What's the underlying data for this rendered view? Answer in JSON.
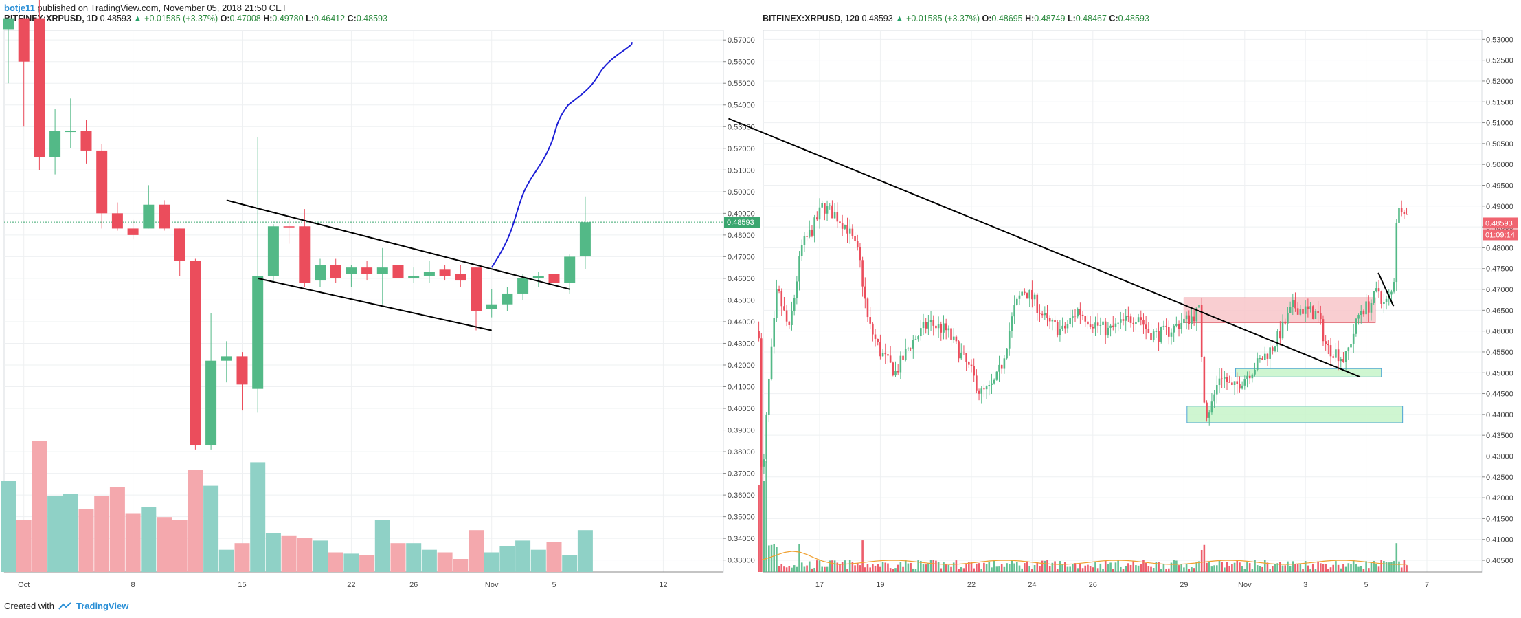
{
  "header": {
    "username": "botje11",
    "published": "published on TradingView.com, November 05, 2018 21:50 CET"
  },
  "footer": {
    "created_with": "Created with",
    "brand": "TradingView"
  },
  "colors": {
    "up": "#53b987",
    "down": "#eb4d5c",
    "vol_up": "#8fd1c6",
    "vol_down": "#f4a8ad",
    "grid": "#eef0f2",
    "axis_text": "#444444",
    "trend_line": "#000000",
    "projection": "#1c1fd6",
    "resistance_box": "#f8c6c9",
    "support_box": "#c7f5c9",
    "price_label": "#f06470",
    "last_price_line": "#3aa66f"
  },
  "chart_data": [
    {
      "type": "candlestick",
      "symbol": "BITFINEX:XRPUSD",
      "interval": "1D",
      "legend": {
        "symbol_interval": "BITFINEX:XRPUSD, 1D",
        "last": "0.48593",
        "change": "+0.01585 (+3.37%)",
        "o": "0.47008",
        "h": "0.49780",
        "l": "0.46412",
        "c": "0.48593"
      },
      "price_label": "0.48593",
      "ylim": [
        0.3245,
        0.5745
      ],
      "yticks": [
        "0.57000",
        "0.56000",
        "0.55000",
        "0.54000",
        "0.53000",
        "0.52000",
        "0.51000",
        "0.50000",
        "0.49000",
        "0.48000",
        "0.47000",
        "0.46000",
        "0.45000",
        "0.44000",
        "0.43000",
        "0.42000",
        "0.41000",
        "0.40000",
        "0.39000",
        "0.38000",
        "0.37000",
        "0.36000",
        "0.35000",
        "0.34000",
        "0.33000"
      ],
      "xticks": [
        {
          "i": 1,
          "label": "Oct"
        },
        {
          "i": 8,
          "label": "8"
        },
        {
          "i": 15,
          "label": "15"
        },
        {
          "i": 22,
          "label": "22"
        },
        {
          "i": 26,
          "label": "26"
        },
        {
          "i": 31,
          "label": "Nov"
        },
        {
          "i": 35,
          "label": "5"
        },
        {
          "i": 42,
          "label": "12"
        }
      ],
      "candles": [
        {
          "i": 0,
          "o": 0.575,
          "h": 0.58,
          "l": 0.55,
          "c": 0.58,
          "v": 0.7
        },
        {
          "i": 1,
          "o": 0.58,
          "h": 0.58,
          "l": 0.53,
          "c": 0.56,
          "v": 0.4
        },
        {
          "i": 2,
          "o": 0.58,
          "h": 0.59,
          "l": 0.51,
          "c": 0.516,
          "v": 1.0
        },
        {
          "i": 3,
          "o": 0.516,
          "h": 0.538,
          "l": 0.508,
          "c": 0.528,
          "v": 0.58
        },
        {
          "i": 4,
          "o": 0.528,
          "h": 0.543,
          "l": 0.52,
          "c": 0.528,
          "v": 0.6
        },
        {
          "i": 5,
          "o": 0.528,
          "h": 0.533,
          "l": 0.513,
          "c": 0.519,
          "v": 0.48
        },
        {
          "i": 6,
          "o": 0.519,
          "h": 0.522,
          "l": 0.483,
          "c": 0.49,
          "v": 0.58
        },
        {
          "i": 7,
          "o": 0.49,
          "h": 0.495,
          "l": 0.482,
          "c": 0.483,
          "v": 0.65
        },
        {
          "i": 8,
          "o": 0.483,
          "h": 0.487,
          "l": 0.478,
          "c": 0.48,
          "v": 0.45
        },
        {
          "i": 9,
          "o": 0.483,
          "h": 0.503,
          "l": 0.483,
          "c": 0.494,
          "v": 0.5
        },
        {
          "i": 10,
          "o": 0.494,
          "h": 0.496,
          "l": 0.482,
          "c": 0.483,
          "v": 0.42
        },
        {
          "i": 11,
          "o": 0.483,
          "h": 0.483,
          "l": 0.461,
          "c": 0.468,
          "v": 0.4
        },
        {
          "i": 12,
          "o": 0.468,
          "h": 0.469,
          "l": 0.381,
          "c": 0.383,
          "v": 0.78
        },
        {
          "i": 13,
          "o": 0.383,
          "h": 0.444,
          "l": 0.381,
          "c": 0.422,
          "v": 0.66
        },
        {
          "i": 14,
          "o": 0.422,
          "h": 0.431,
          "l": 0.412,
          "c": 0.424,
          "v": 0.17
        },
        {
          "i": 15,
          "o": 0.424,
          "h": 0.426,
          "l": 0.399,
          "c": 0.411,
          "v": 0.22
        },
        {
          "i": 16,
          "o": 0.409,
          "h": 0.525,
          "l": 0.398,
          "c": 0.461,
          "v": 0.84
        },
        {
          "i": 17,
          "o": 0.461,
          "h": 0.485,
          "l": 0.458,
          "c": 0.484,
          "v": 0.3
        },
        {
          "i": 18,
          "o": 0.484,
          "h": 0.488,
          "l": 0.476,
          "c": 0.4838,
          "v": 0.28
        },
        {
          "i": 19,
          "o": 0.484,
          "h": 0.492,
          "l": 0.456,
          "c": 0.458,
          "v": 0.26
        },
        {
          "i": 20,
          "o": 0.459,
          "h": 0.469,
          "l": 0.456,
          "c": 0.466,
          "v": 0.24
        },
        {
          "i": 21,
          "o": 0.466,
          "h": 0.469,
          "l": 0.458,
          "c": 0.46,
          "v": 0.15
        },
        {
          "i": 22,
          "o": 0.462,
          "h": 0.466,
          "l": 0.456,
          "c": 0.465,
          "v": 0.14
        },
        {
          "i": 23,
          "o": 0.465,
          "h": 0.468,
          "l": 0.459,
          "c": 0.462,
          "v": 0.13
        },
        {
          "i": 24,
          "o": 0.462,
          "h": 0.474,
          "l": 0.448,
          "c": 0.465,
          "v": 0.4
        },
        {
          "i": 25,
          "o": 0.466,
          "h": 0.47,
          "l": 0.459,
          "c": 0.46,
          "v": 0.22
        },
        {
          "i": 26,
          "o": 0.46,
          "h": 0.465,
          "l": 0.458,
          "c": 0.461,
          "v": 0.22
        },
        {
          "i": 27,
          "o": 0.461,
          "h": 0.468,
          "l": 0.458,
          "c": 0.463,
          "v": 0.17
        },
        {
          "i": 28,
          "o": 0.464,
          "h": 0.466,
          "l": 0.459,
          "c": 0.461,
          "v": 0.15
        },
        {
          "i": 29,
          "o": 0.462,
          "h": 0.466,
          "l": 0.456,
          "c": 0.459,
          "v": 0.1
        },
        {
          "i": 30,
          "o": 0.465,
          "h": 0.465,
          "l": 0.436,
          "c": 0.445,
          "v": 0.32
        },
        {
          "i": 31,
          "o": 0.446,
          "h": 0.455,
          "l": 0.442,
          "c": 0.448,
          "v": 0.15
        },
        {
          "i": 32,
          "o": 0.448,
          "h": 0.456,
          "l": 0.445,
          "c": 0.453,
          "v": 0.2
        },
        {
          "i": 33,
          "o": 0.453,
          "h": 0.462,
          "l": 0.45,
          "c": 0.46,
          "v": 0.24
        },
        {
          "i": 34,
          "o": 0.46,
          "h": 0.463,
          "l": 0.456,
          "c": 0.461,
          "v": 0.17
        },
        {
          "i": 35,
          "o": 0.462,
          "h": 0.464,
          "l": 0.457,
          "c": 0.458,
          "v": 0.23
        },
        {
          "i": 36,
          "o": 0.458,
          "h": 0.471,
          "l": 0.453,
          "c": 0.47,
          "v": 0.13
        },
        {
          "i": 37,
          "o": 0.4701,
          "h": 0.4978,
          "l": 0.4641,
          "c": 0.4859,
          "v": 0.32
        }
      ],
      "drawings": {
        "upper_trend": [
          [
            14,
            0.496
          ],
          [
            36,
            0.455
          ]
        ],
        "lower_trend": [
          [
            16,
            0.46
          ],
          [
            31,
            0.436
          ]
        ],
        "projection": [
          [
            31,
            0.465
          ],
          [
            33,
            0.496
          ],
          [
            34.5,
            0.52
          ],
          [
            36,
            0.54
          ],
          [
            38,
            0.555
          ],
          [
            40,
            0.569
          ]
        ]
      }
    },
    {
      "type": "candlestick",
      "symbol": "BITFINEX:XRPUSD",
      "interval": "120",
      "legend": {
        "symbol_interval": "BITFINEX:XRPUSD, 120",
        "last": "0.48593",
        "change": "+0.01585 (+3.37%)",
        "o": "0.48695",
        "h": "0.48749",
        "l": "0.48467",
        "c": "0.48593"
      },
      "price_label": "0.48593",
      "countdown_label": "01:09:14",
      "ylim": [
        0.4022,
        0.5322
      ],
      "yticks": [
        "0.53000",
        "0.52500",
        "0.52000",
        "0.51500",
        "0.51000",
        "0.50500",
        "0.50000",
        "0.49500",
        "0.49000",
        "0.48500",
        "0.48000",
        "0.47500",
        "0.47000",
        "0.46500",
        "0.46000",
        "0.45500",
        "0.45000",
        "0.44500",
        "0.44000",
        "0.43500",
        "0.43000",
        "0.42500",
        "0.42000",
        "0.41500",
        "0.41000",
        "0.40500"
      ],
      "xticks": [
        {
          "t": 17,
          "label": "17"
        },
        {
          "t": 19,
          "label": "19"
        },
        {
          "t": 22,
          "label": "22"
        },
        {
          "t": 24,
          "label": "24"
        },
        {
          "t": 26,
          "label": "26"
        },
        {
          "t": 29,
          "label": "29"
        },
        {
          "t": 31,
          "label": "Nov"
        },
        {
          "t": 33,
          "label": "3"
        },
        {
          "t": 35,
          "label": "5"
        },
        {
          "t": 37,
          "label": "7"
        }
      ],
      "path": [
        [
          15.0,
          0.46
        ],
        [
          15.1,
          0.42
        ],
        [
          15.3,
          0.445
        ],
        [
          15.6,
          0.47
        ],
        [
          16.0,
          0.46
        ],
        [
          16.4,
          0.48
        ],
        [
          16.8,
          0.485
        ],
        [
          17.1,
          0.49
        ],
        [
          17.5,
          0.488
        ],
        [
          17.9,
          0.485
        ],
        [
          18.3,
          0.478
        ],
        [
          18.6,
          0.462
        ],
        [
          19.0,
          0.455
        ],
        [
          19.5,
          0.45
        ],
        [
          20.0,
          0.457
        ],
        [
          20.6,
          0.462
        ],
        [
          21.2,
          0.46
        ],
        [
          21.6,
          0.455
        ],
        [
          22.0,
          0.45
        ],
        [
          22.3,
          0.445
        ],
        [
          22.6,
          0.446
        ],
        [
          22.8,
          0.448
        ],
        [
          23.0,
          0.452
        ],
        [
          23.4,
          0.465
        ],
        [
          23.7,
          0.47
        ],
        [
          24.0,
          0.468
        ],
        [
          24.5,
          0.462
        ],
        [
          25.0,
          0.46
        ],
        [
          25.5,
          0.465
        ],
        [
          26.0,
          0.462
        ],
        [
          26.5,
          0.46
        ],
        [
          27.0,
          0.462
        ],
        [
          27.5,
          0.464
        ],
        [
          27.8,
          0.46
        ],
        [
          28.1,
          0.459
        ],
        [
          28.5,
          0.46
        ],
        [
          28.9,
          0.462
        ],
        [
          29.2,
          0.463
        ],
        [
          29.5,
          0.465
        ],
        [
          29.7,
          0.44
        ],
        [
          29.9,
          0.442
        ],
        [
          30.2,
          0.45
        ],
        [
          30.6,
          0.446
        ],
        [
          31.0,
          0.449
        ],
        [
          31.4,
          0.452
        ],
        [
          31.9,
          0.456
        ],
        [
          32.2,
          0.46
        ],
        [
          32.6,
          0.466
        ],
        [
          33.0,
          0.465
        ],
        [
          33.4,
          0.464
        ],
        [
          33.7,
          0.456
        ],
        [
          34.0,
          0.455
        ],
        [
          34.3,
          0.453
        ],
        [
          34.6,
          0.46
        ],
        [
          34.8,
          0.465
        ],
        [
          35.1,
          0.466
        ],
        [
          35.4,
          0.47
        ],
        [
          35.6,
          0.466
        ],
        [
          35.9,
          0.47
        ],
        [
          36.0,
          0.487
        ],
        [
          36.2,
          0.491
        ],
        [
          36.4,
          0.486
        ]
      ],
      "drawings": {
        "trend_line": [
          [
            14.0,
            0.511
          ],
          [
            34.8,
            0.449
          ]
        ],
        "small_trend": [
          [
            35.4,
            0.474
          ],
          [
            35.9,
            0.466
          ]
        ],
        "resistance_box": {
          "t0": 29.0,
          "t1": 35.3,
          "p0": 0.462,
          "p1": 0.468
        },
        "support_box_upper": {
          "t0": 30.7,
          "t1": 35.5,
          "p0": 0.449,
          "p1": 0.451
        },
        "support_box_lower": {
          "t0": 29.1,
          "t1": 36.2,
          "p0": 0.438,
          "p1": 0.442
        }
      }
    }
  ]
}
